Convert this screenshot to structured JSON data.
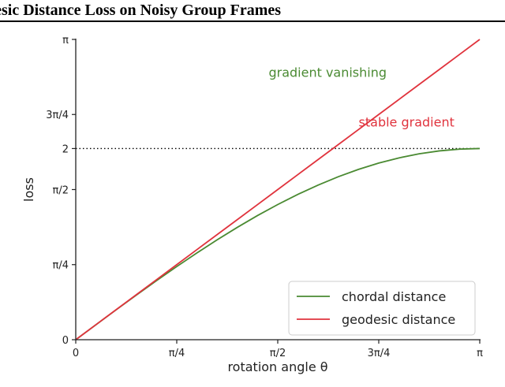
{
  "title": "desic Distance Loss on Noisy Group Frames",
  "colors": {
    "chordal": "#4a8a32",
    "geodesic": "#e0333d",
    "reference": "#000000"
  },
  "chart_data": {
    "type": "line",
    "xlabel": "rotation angle θ",
    "ylabel": "loss",
    "xlim": [
      0,
      3.14159
    ],
    "ylim": [
      0,
      3.14159
    ],
    "x_ticks": [
      {
        "value": 0,
        "label": "0"
      },
      {
        "value": 0.7854,
        "label": "π/4"
      },
      {
        "value": 1.5708,
        "label": "π/2"
      },
      {
        "value": 2.3562,
        "label": "3π/4"
      },
      {
        "value": 3.14159,
        "label": "π"
      }
    ],
    "y_ticks": [
      {
        "value": 0,
        "label": "0"
      },
      {
        "value": 0.7854,
        "label": "π/4"
      },
      {
        "value": 1.5708,
        "label": "π/2"
      },
      {
        "value": 2,
        "label": "2"
      },
      {
        "value": 2.3562,
        "label": "3π/4"
      },
      {
        "value": 3.14159,
        "label": "π"
      }
    ],
    "x": [
      0,
      0.1571,
      0.3142,
      0.4712,
      0.6283,
      0.7854,
      0.9425,
      1.0996,
      1.2566,
      1.4137,
      1.5708,
      1.7279,
      1.885,
      2.042,
      2.1991,
      2.3562,
      2.5133,
      2.6704,
      2.8274,
      2.9845,
      3.1416
    ],
    "series": [
      {
        "name": "chordal distance",
        "values": [
          0,
          0.1569,
          0.3129,
          0.4669,
          0.618,
          0.7654,
          0.908,
          1.0451,
          1.1756,
          1.2989,
          1.4142,
          1.5208,
          1.618,
          1.7053,
          1.782,
          1.8478,
          1.9021,
          1.9447,
          1.9754,
          1.9938,
          2.0
        ]
      },
      {
        "name": "geodesic distance",
        "values": [
          0,
          0.1571,
          0.3142,
          0.4712,
          0.6283,
          0.7854,
          0.9425,
          1.0996,
          1.2566,
          1.4137,
          1.5708,
          1.7279,
          1.885,
          2.042,
          2.1991,
          2.3562,
          2.5133,
          2.6704,
          2.8274,
          2.9845,
          3.1416
        ]
      }
    ],
    "reference_line": {
      "y": 2.0,
      "style": "dotted"
    },
    "annotations": [
      {
        "text": "gradient vanishing",
        "series": "chordal distance"
      },
      {
        "text": "stable gradient",
        "series": "geodesic distance"
      }
    ],
    "legend": {
      "position": "bottom-right",
      "entries": [
        "chordal distance",
        "geodesic distance"
      ]
    },
    "grid": false
  }
}
